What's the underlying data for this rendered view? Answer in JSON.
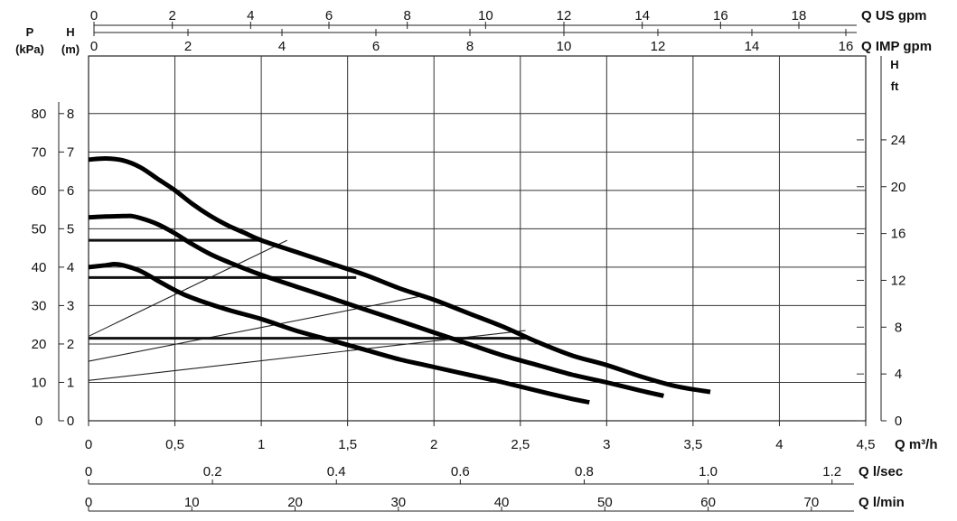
{
  "chart_data": {
    "type": "line",
    "title": "",
    "x": {
      "primary": {
        "label": "Q m³/h",
        "range": [
          0,
          4.5
        ],
        "ticks": [
          0,
          0.5,
          1,
          1.5,
          2,
          2.5,
          3,
          3.5,
          4,
          4.5
        ],
        "tick_labels": [
          "0",
          "0,5",
          "1",
          "1,5",
          "2",
          "2,5",
          "3",
          "3,5",
          "4",
          "4,5"
        ]
      },
      "secondary_bottom": [
        {
          "label": "Q l/sec",
          "range": [
            0,
            1.25
          ],
          "ticks": [
            0,
            0.2,
            0.4,
            0.6,
            0.8,
            1.0,
            1.2
          ],
          "tick_labels": [
            "0",
            "0.2",
            "0.4",
            "0.6",
            "0.8",
            "1.0",
            "1.2"
          ]
        },
        {
          "label": "Q l/min",
          "range": [
            0,
            75
          ],
          "ticks": [
            0,
            10,
            20,
            30,
            40,
            50,
            60,
            70
          ],
          "tick_labels": [
            "0",
            "10",
            "20",
            "30",
            "40",
            "50",
            "60",
            "70"
          ]
        }
      ],
      "secondary_top": [
        {
          "label": "Q US gpm",
          "range": [
            0,
            19.8
          ],
          "ticks": [
            0,
            2,
            4,
            6,
            8,
            10,
            12,
            14,
            16,
            18
          ],
          "tick_labels": [
            "0",
            "2",
            "4",
            "6",
            "8",
            "10",
            "12",
            "14",
            "16",
            "18"
          ]
        },
        {
          "label": "Q IMP gpm",
          "range": [
            0,
            16.5
          ],
          "ticks": [
            0,
            2,
            4,
            6,
            8,
            10,
            12,
            14,
            16
          ],
          "tick_labels": [
            "0",
            "2",
            "4",
            "6",
            "8",
            "10",
            "12",
            "14",
            "16"
          ]
        }
      ]
    },
    "y": {
      "primary": {
        "label_top": "H",
        "label_bottom": "(m)",
        "range": [
          0,
          9.5
        ],
        "ticks": [
          0,
          1,
          2,
          3,
          4,
          5,
          6,
          7,
          8
        ],
        "tick_labels": [
          "0",
          "1",
          "2",
          "3",
          "4",
          "5",
          "6",
          "7",
          "8"
        ]
      },
      "pressure": {
        "label_top": "P",
        "label_bottom": "(kPa)",
        "ticks": [
          0,
          10,
          20,
          30,
          40,
          50,
          60,
          70,
          80
        ],
        "tick_labels": [
          "0",
          "10",
          "20",
          "30",
          "40",
          "50",
          "60",
          "70",
          "80"
        ]
      },
      "right": {
        "label_top": "H",
        "label_bottom": "ft",
        "ticks": [
          0,
          4,
          8,
          12,
          16,
          20,
          24
        ],
        "tick_labels": [
          "0",
          "4",
          "8",
          "12",
          "16",
          "20",
          "24"
        ]
      }
    },
    "grid": true,
    "legend": "none",
    "series": [
      {
        "points": [
          [
            0,
            6.8
          ],
          [
            0.1,
            6.83
          ],
          [
            0.2,
            6.78
          ],
          [
            0.3,
            6.6
          ],
          [
            0.4,
            6.3
          ],
          [
            0.5,
            6.0
          ],
          [
            0.6,
            5.65
          ],
          [
            0.7,
            5.35
          ],
          [
            0.8,
            5.1
          ],
          [
            0.9,
            4.9
          ],
          [
            1.0,
            4.7
          ],
          [
            1.2,
            4.4
          ],
          [
            1.4,
            4.1
          ],
          [
            1.6,
            3.8
          ],
          [
            1.8,
            3.45
          ],
          [
            2.0,
            3.15
          ],
          [
            2.2,
            2.8
          ],
          [
            2.4,
            2.45
          ],
          [
            2.6,
            2.05
          ],
          [
            2.8,
            1.7
          ],
          [
            3.0,
            1.45
          ],
          [
            3.2,
            1.15
          ],
          [
            3.4,
            0.9
          ],
          [
            3.6,
            0.75
          ]
        ]
      },
      {
        "points": [
          [
            0,
            5.3
          ],
          [
            0.1,
            5.32
          ],
          [
            0.2,
            5.33
          ],
          [
            0.25,
            5.33
          ],
          [
            0.3,
            5.28
          ],
          [
            0.4,
            5.12
          ],
          [
            0.5,
            4.88
          ],
          [
            0.6,
            4.6
          ],
          [
            0.7,
            4.35
          ],
          [
            0.8,
            4.15
          ],
          [
            1.0,
            3.8
          ],
          [
            1.2,
            3.5
          ],
          [
            1.4,
            3.2
          ],
          [
            1.6,
            2.9
          ],
          [
            1.8,
            2.6
          ],
          [
            2.0,
            2.3
          ],
          [
            2.2,
            2.0
          ],
          [
            2.4,
            1.7
          ],
          [
            2.6,
            1.45
          ],
          [
            2.8,
            1.2
          ],
          [
            3.0,
            1.0
          ],
          [
            3.2,
            0.78
          ],
          [
            3.33,
            0.65
          ]
        ]
      },
      {
        "points": [
          [
            0,
            4.0
          ],
          [
            0.1,
            4.05
          ],
          [
            0.15,
            4.08
          ],
          [
            0.2,
            4.05
          ],
          [
            0.3,
            3.9
          ],
          [
            0.4,
            3.65
          ],
          [
            0.5,
            3.4
          ],
          [
            0.6,
            3.2
          ],
          [
            0.8,
            2.9
          ],
          [
            1.0,
            2.65
          ],
          [
            1.2,
            2.35
          ],
          [
            1.4,
            2.1
          ],
          [
            1.6,
            1.85
          ],
          [
            1.8,
            1.6
          ],
          [
            2.0,
            1.4
          ],
          [
            2.2,
            1.2
          ],
          [
            2.4,
            1.0
          ],
          [
            2.6,
            0.78
          ],
          [
            2.8,
            0.57
          ],
          [
            2.9,
            0.48
          ]
        ]
      }
    ],
    "horizontal_segments": [
      {
        "y": 4.7,
        "x0": 0,
        "x1": 1.0
      },
      {
        "y": 3.73,
        "x0": 0,
        "x1": 1.55
      },
      {
        "y": 2.15,
        "x0": 0,
        "x1": 2.53
      }
    ],
    "system_lines": [
      {
        "from": [
          0,
          2.2
        ],
        "to": [
          1.15,
          4.7
        ]
      },
      {
        "from": [
          0,
          1.55
        ],
        "to": [
          1.93,
          3.25
        ]
      },
      {
        "from": [
          0,
          1.05
        ],
        "to": [
          2.53,
          2.35
        ]
      }
    ]
  }
}
